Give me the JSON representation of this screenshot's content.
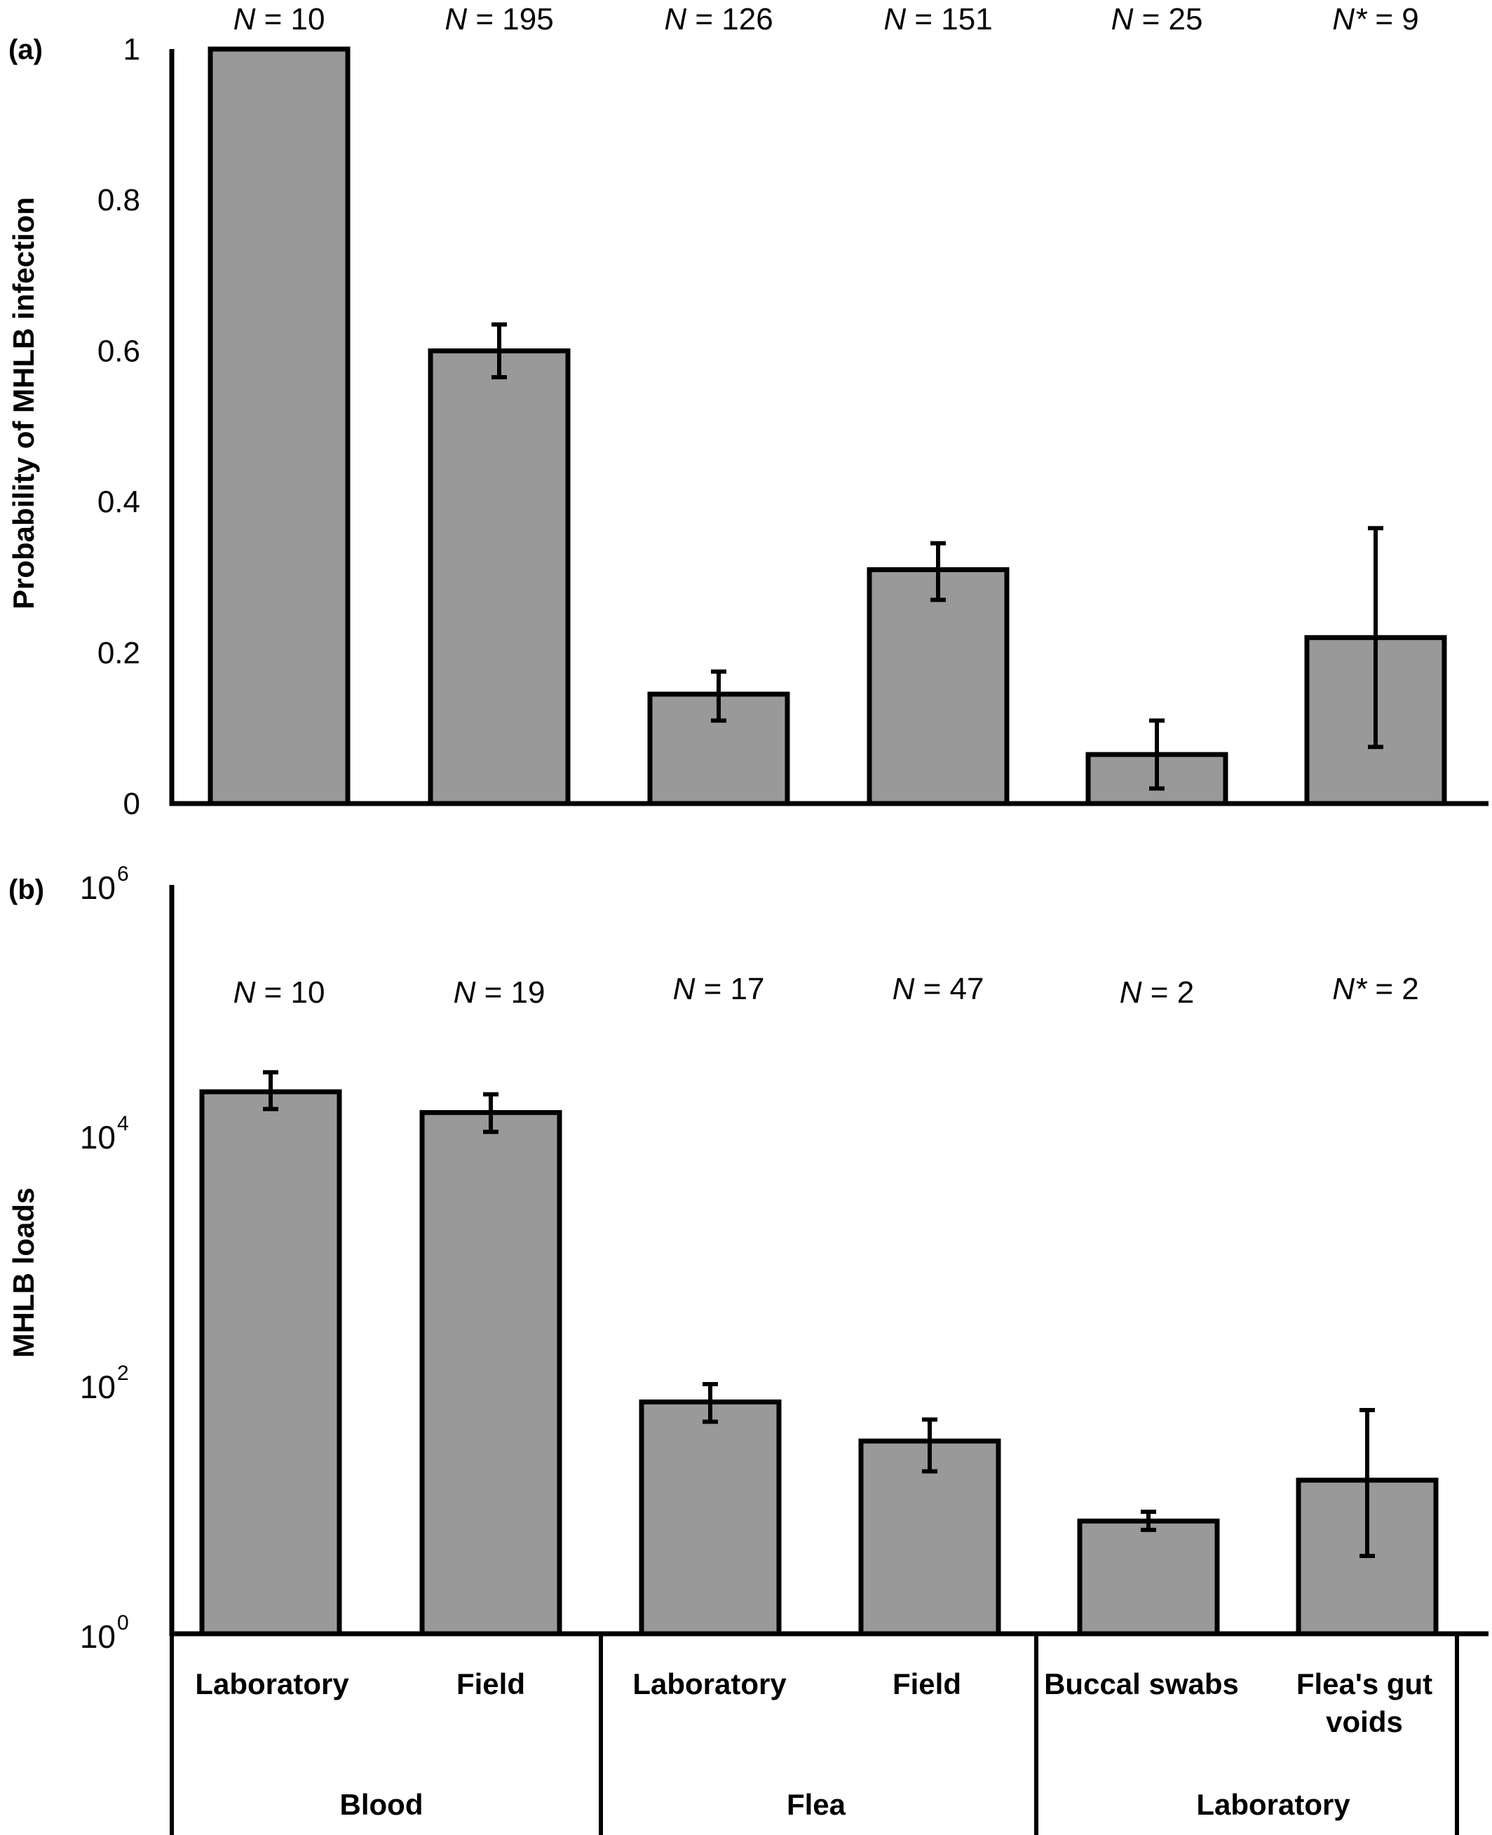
{
  "colors": {
    "bar_fill": "#999999",
    "bar_stroke": "#000000",
    "axis": "#000000"
  },
  "chart_data": [
    {
      "type": "bar",
      "panel_label": "(a)",
      "ylabel": "Probability of MHLB infection",
      "ylim": [
        0,
        1
      ],
      "yscale": "linear",
      "yticks": [
        "0",
        "0.2",
        "0.4",
        "0.6",
        "0.8",
        "1"
      ],
      "categories": [
        "Blood Laboratory",
        "Blood Field",
        "Flea Laboratory",
        "Flea Field",
        "Laboratory Buccal swabs",
        "Laboratory Flea's gut voids"
      ],
      "values": [
        1.0,
        0.6,
        0.145,
        0.31,
        0.065,
        0.22
      ],
      "err_low": [
        1.0,
        0.565,
        0.11,
        0.27,
        0.02,
        0.075
      ],
      "err_high": [
        1.0,
        0.635,
        0.175,
        0.345,
        0.11,
        0.365
      ],
      "n_labels": [
        {
          "prefix": "N",
          "value": "= 10"
        },
        {
          "prefix": "N",
          "value": "= 195"
        },
        {
          "prefix": "N",
          "value": "= 126"
        },
        {
          "prefix": "N",
          "value": "= 151"
        },
        {
          "prefix": "N",
          "value": "= 25"
        },
        {
          "prefix": "N*",
          "value": "= 9"
        }
      ],
      "grid": false
    },
    {
      "type": "bar",
      "panel_label": "(b)",
      "ylabel": "MHLB loads",
      "ylim": [
        1,
        1000000
      ],
      "yscale": "log",
      "yticks": [
        {
          "base": "10",
          "exp": "0"
        },
        {
          "base": "10",
          "exp": "2"
        },
        {
          "base": "10",
          "exp": "4"
        },
        {
          "base": "10",
          "exp": "6"
        }
      ],
      "categories": [
        "Blood Laboratory",
        "Blood Field",
        "Flea Laboratory",
        "Flea Field",
        "Laboratory Buccal swabs",
        "Laboratory Flea's gut voids"
      ],
      "values": [
        22000,
        15000,
        72,
        35,
        8,
        17
      ],
      "err_low": [
        16000,
        10500,
        50,
        20,
        6.8,
        4.2
      ],
      "err_high": [
        31500,
        21000,
        100,
        52,
        9.5,
        62
      ],
      "n_labels": [
        {
          "prefix": "N",
          "value": "= 10"
        },
        {
          "prefix": "N",
          "value": "= 19"
        },
        {
          "prefix": "N",
          "value": "= 17"
        },
        {
          "prefix": "N",
          "value": "= 47"
        },
        {
          "prefix": "N",
          "value": "= 2"
        },
        {
          "prefix": "N*",
          "value": "= 2"
        }
      ],
      "grid": false
    }
  ],
  "x_groups": {
    "sub_labels": [
      [
        "Laboratory"
      ],
      [
        "Field"
      ],
      [
        "Laboratory"
      ],
      [
        "Field"
      ],
      [
        "Buccal swabs"
      ],
      [
        "Flea's gut",
        "voids"
      ]
    ],
    "groups": [
      "Blood",
      "Flea",
      "Laboratory"
    ]
  }
}
